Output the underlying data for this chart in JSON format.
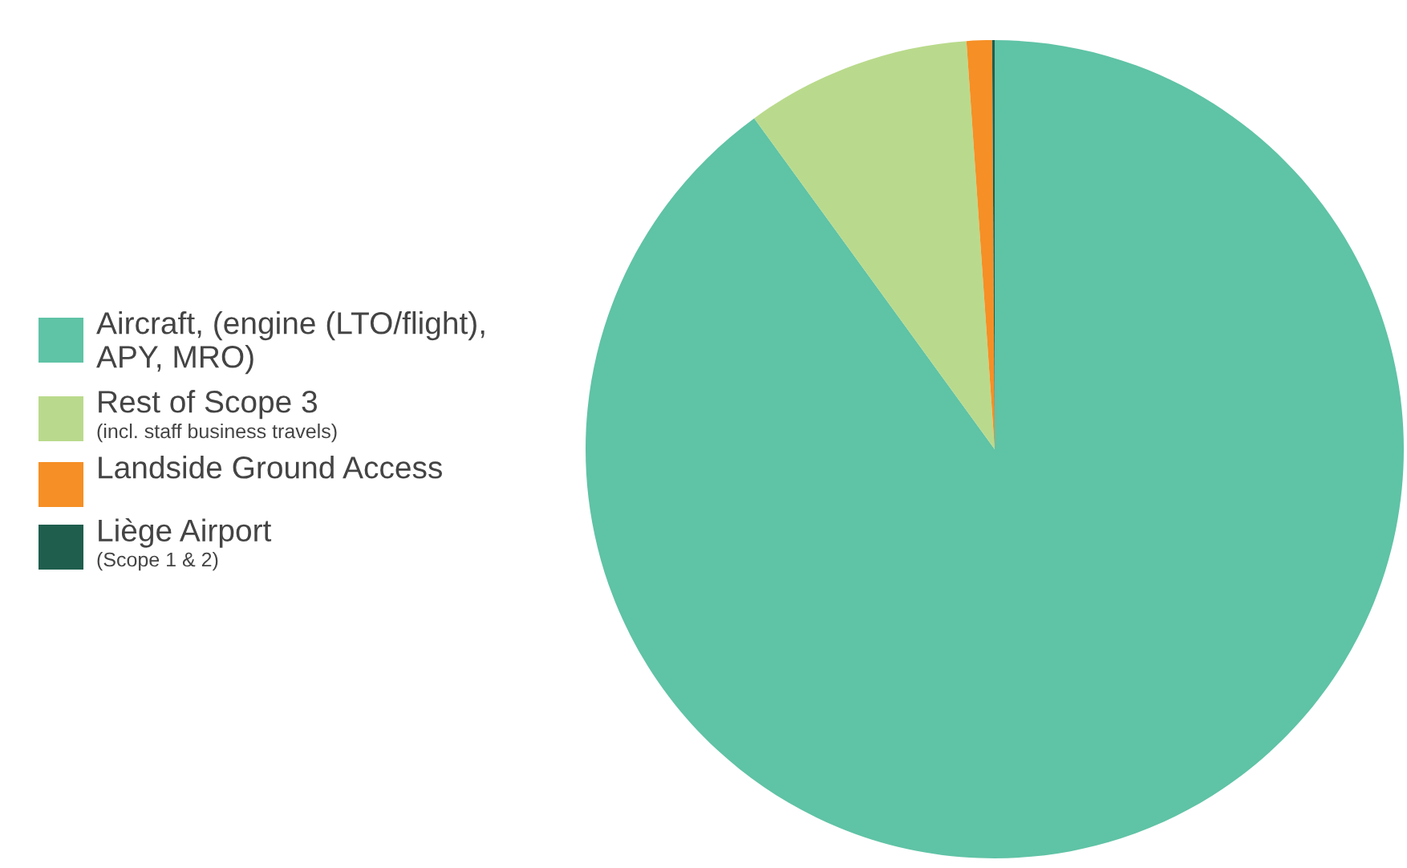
{
  "chart_data": {
    "type": "pie",
    "categories": [
      "Aircraft, (engine (LTO/flight),\nAPY, MRO)",
      "Rest of Scope 3\n(incl. staff business travels)",
      "Landside Ground Access",
      "Liège Airport\n(Scope 1 & 2)"
    ],
    "values": [
      90.0,
      8.9,
      1.0,
      0.1
    ],
    "colors": [
      "#5fc3a5",
      "#b9da8c",
      "#f68f25",
      "#1f5e4d"
    ],
    "legend": "left"
  }
}
